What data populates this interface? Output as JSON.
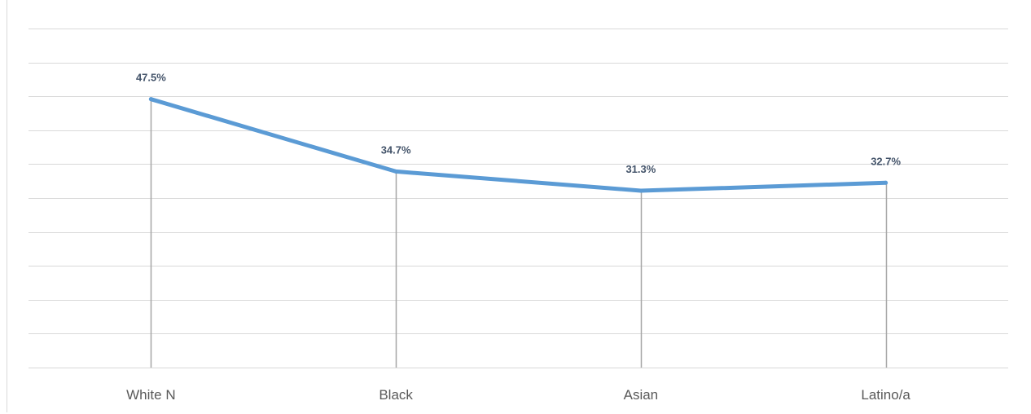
{
  "chart_data": {
    "type": "line",
    "categories": [
      "White N",
      "Black",
      "Asian",
      "Latino/a"
    ],
    "series": [
      {
        "values": [
          47.5,
          34.7,
          31.3,
          32.7
        ],
        "labels": [
          "47.5%",
          "34.7%",
          "31.3%",
          "32.7%"
        ],
        "color": "#5b9bd5"
      }
    ],
    "ylim": [
      0,
      60
    ],
    "y_gridlines": 10,
    "drop_lines": true,
    "grid": true,
    "legend": "none",
    "label_color": "#44546a",
    "tick_label_color": "#595959",
    "grid_color": "#d9d9d9",
    "drop_line_color": "#a6a6a6"
  }
}
